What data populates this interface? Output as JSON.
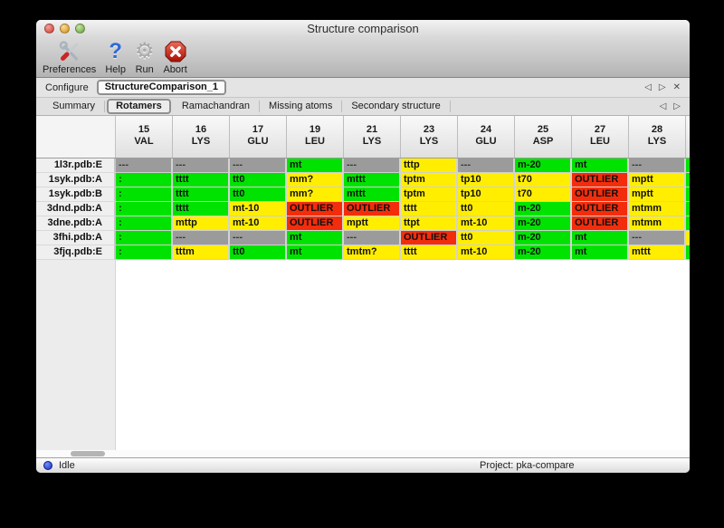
{
  "window": {
    "title": "Structure comparison"
  },
  "toolbar": {
    "items": [
      {
        "name": "preferences",
        "label": "Preferences",
        "icon": "preferences-tools-icon"
      },
      {
        "name": "help",
        "label": "Help",
        "icon": "help-question-icon"
      },
      {
        "name": "run",
        "label": "Run",
        "icon": "run-gear-icon"
      },
      {
        "name": "abort",
        "label": "Abort",
        "icon": "abort-stop-icon"
      }
    ]
  },
  "configure": {
    "label": "Configure",
    "tab_name": "StructureComparison_1",
    "nav": {
      "prev_icon": "◁",
      "next_icon": "▷",
      "close_icon": "✕"
    }
  },
  "tabs": {
    "items": [
      "Summary",
      "Rotamers",
      "Ramachandran",
      "Missing atoms",
      "Secondary structure"
    ],
    "selected": "Rotamers",
    "nav": {
      "prev_icon": "◁",
      "next_icon": "▷"
    }
  },
  "colors": {
    "green": "#00e300",
    "yellow": "#ffee00",
    "red": "#f32d0c",
    "gray": "#9b9b9b"
  },
  "table": {
    "columns": [
      {
        "num": "15",
        "res": "VAL"
      },
      {
        "num": "16",
        "res": "LYS"
      },
      {
        "num": "17",
        "res": "GLU"
      },
      {
        "num": "19",
        "res": "LEU"
      },
      {
        "num": "21",
        "res": "LYS"
      },
      {
        "num": "23",
        "res": "LYS"
      },
      {
        "num": "24",
        "res": "GLU"
      },
      {
        "num": "25",
        "res": "ASP"
      },
      {
        "num": "27",
        "res": "LEU"
      },
      {
        "num": "28",
        "res": "LYS"
      }
    ],
    "rows": [
      {
        "label": "1l3r.pdb:E",
        "cells": [
          {
            "v": "---",
            "c": "gray"
          },
          {
            "v": "---",
            "c": "gray"
          },
          {
            "v": "---",
            "c": "gray"
          },
          {
            "v": "mt",
            "c": "green"
          },
          {
            "v": "---",
            "c": "gray"
          },
          {
            "v": "tttp",
            "c": "yellow"
          },
          {
            "v": "---",
            "c": "gray"
          },
          {
            "v": "m-20",
            "c": "green"
          },
          {
            "v": "mt",
            "c": "green"
          },
          {
            "v": "---",
            "c": "gray"
          }
        ],
        "partial_next_column_color": "green"
      },
      {
        "label": "1syk.pdb:A",
        "cells": [
          {
            "v": ":",
            "c": "green"
          },
          {
            "v": "tttt",
            "c": "green"
          },
          {
            "v": "tt0",
            "c": "green"
          },
          {
            "v": "mm?",
            "c": "yellow"
          },
          {
            "v": "mttt",
            "c": "green"
          },
          {
            "v": "tptm",
            "c": "yellow"
          },
          {
            "v": "tp10",
            "c": "yellow"
          },
          {
            "v": "t70",
            "c": "yellow"
          },
          {
            "v": "OUTLIER",
            "c": "red"
          },
          {
            "v": "mptt",
            "c": "yellow"
          }
        ],
        "partial_next_column_color": "green"
      },
      {
        "label": "1syk.pdb:B",
        "cells": [
          {
            "v": ":",
            "c": "green"
          },
          {
            "v": "tttt",
            "c": "green"
          },
          {
            "v": "tt0",
            "c": "green"
          },
          {
            "v": "mm?",
            "c": "yellow"
          },
          {
            "v": "mttt",
            "c": "green"
          },
          {
            "v": "tptm",
            "c": "yellow"
          },
          {
            "v": "tp10",
            "c": "yellow"
          },
          {
            "v": "t70",
            "c": "yellow"
          },
          {
            "v": "OUTLIER",
            "c": "red"
          },
          {
            "v": "mptt",
            "c": "yellow"
          }
        ],
        "partial_next_column_color": "green"
      },
      {
        "label": "3dnd.pdb:A",
        "cells": [
          {
            "v": ":",
            "c": "green"
          },
          {
            "v": "tttt",
            "c": "green"
          },
          {
            "v": "mt-10",
            "c": "yellow"
          },
          {
            "v": "OUTLIER",
            "c": "red"
          },
          {
            "v": "OUTLIER",
            "c": "red"
          },
          {
            "v": "tttt",
            "c": "yellow"
          },
          {
            "v": "tt0",
            "c": "yellow"
          },
          {
            "v": "m-20",
            "c": "green"
          },
          {
            "v": "OUTLIER",
            "c": "red"
          },
          {
            "v": "mtmm",
            "c": "yellow"
          }
        ],
        "partial_next_column_color": "green"
      },
      {
        "label": "3dne.pdb:A",
        "cells": [
          {
            "v": ":",
            "c": "green"
          },
          {
            "v": "mttp",
            "c": "yellow"
          },
          {
            "v": "mt-10",
            "c": "yellow"
          },
          {
            "v": "OUTLIER",
            "c": "red"
          },
          {
            "v": "mptt",
            "c": "yellow"
          },
          {
            "v": "ttpt",
            "c": "yellow"
          },
          {
            "v": "mt-10",
            "c": "yellow"
          },
          {
            "v": "m-20",
            "c": "green"
          },
          {
            "v": "OUTLIER",
            "c": "red"
          },
          {
            "v": "mtmm",
            "c": "yellow"
          }
        ],
        "partial_next_column_color": "green"
      },
      {
        "label": "3fhi.pdb:A",
        "cells": [
          {
            "v": ":",
            "c": "green"
          },
          {
            "v": "---",
            "c": "gray"
          },
          {
            "v": "---",
            "c": "gray"
          },
          {
            "v": "mt",
            "c": "green"
          },
          {
            "v": "---",
            "c": "gray"
          },
          {
            "v": "OUTLIER",
            "c": "red"
          },
          {
            "v": "tt0",
            "c": "yellow"
          },
          {
            "v": "m-20",
            "c": "green"
          },
          {
            "v": "mt",
            "c": "green"
          },
          {
            "v": "---",
            "c": "gray"
          }
        ],
        "partial_next_column_color": "yellow"
      },
      {
        "label": "3fjq.pdb:E",
        "cells": [
          {
            "v": ":",
            "c": "green"
          },
          {
            "v": "tttm",
            "c": "yellow"
          },
          {
            "v": "tt0",
            "c": "green"
          },
          {
            "v": "mt",
            "c": "green"
          },
          {
            "v": "tmtm?",
            "c": "yellow"
          },
          {
            "v": "tttt",
            "c": "yellow"
          },
          {
            "v": "mt-10",
            "c": "yellow"
          },
          {
            "v": "m-20",
            "c": "green"
          },
          {
            "v": "mt",
            "c": "green"
          },
          {
            "v": "mttt",
            "c": "yellow"
          }
        ],
        "partial_next_column_color": "green"
      }
    ]
  },
  "statusbar": {
    "status_label": "Idle",
    "project_label": "Project: pka-compare"
  }
}
